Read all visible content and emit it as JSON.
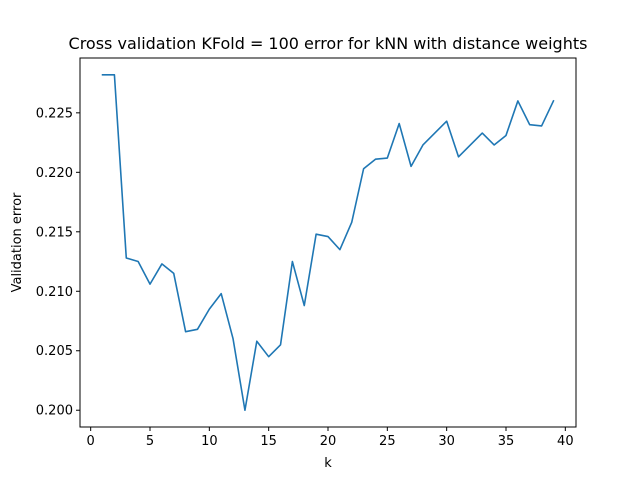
{
  "chart_data": {
    "type": "line",
    "title": "Cross validation KFold = 100 error for kNN with distance weights",
    "xlabel": "k",
    "ylabel": "Validation error",
    "xlim": [
      -0.9,
      40.9
    ],
    "ylim": [
      0.19859,
      0.22961
    ],
    "x_ticks": [
      0,
      5,
      10,
      15,
      20,
      25,
      30,
      35,
      40
    ],
    "y_ticks": [
      0.2,
      0.205,
      0.21,
      0.215,
      0.22,
      0.225
    ],
    "y_tick_labels": [
      "0.200",
      "0.205",
      "0.210",
      "0.215",
      "0.220",
      "0.225"
    ],
    "grid": false,
    "series_color": "#1f77b4",
    "series": [
      {
        "x": [
          1,
          2,
          3,
          4,
          5,
          6,
          7,
          8,
          9,
          10,
          11,
          12,
          13,
          14,
          15,
          16,
          17,
          18,
          19,
          20,
          21,
          22,
          23,
          24,
          25,
          26,
          27,
          28,
          29,
          30,
          31,
          32,
          33,
          34,
          35,
          36,
          37,
          38,
          39
        ],
        "values": [
          0.2282,
          0.2282,
          0.2128,
          0.2125,
          0.2106,
          0.2123,
          0.2115,
          0.2066,
          0.2068,
          0.2085,
          0.2098,
          0.206,
          0.2,
          0.2058,
          0.2045,
          0.2055,
          0.2125,
          0.2088,
          0.2148,
          0.2146,
          0.2135,
          0.2158,
          0.2203,
          0.2211,
          0.2212,
          0.2241,
          0.2205,
          0.2223,
          0.2233,
          0.2243,
          0.2213,
          0.2223,
          0.2233,
          0.2223,
          0.2231,
          0.226,
          0.224,
          0.2239,
          0.226
        ]
      }
    ]
  }
}
